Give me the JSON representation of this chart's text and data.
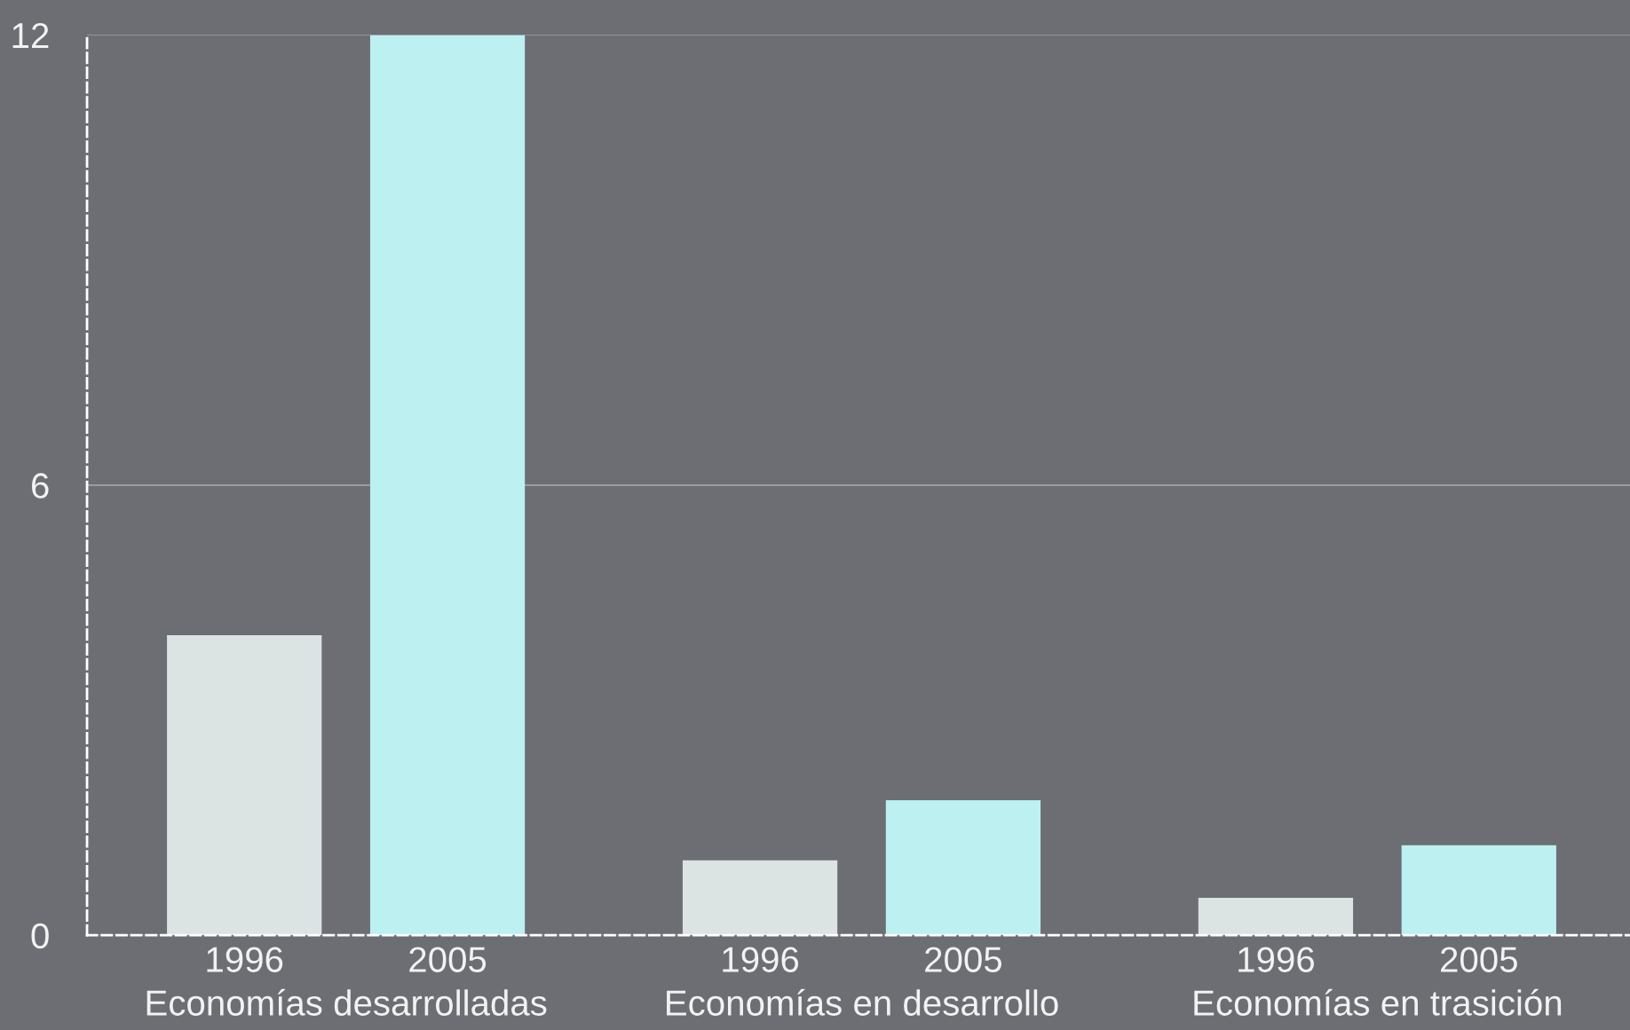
{
  "chart_data": {
    "type": "bar",
    "categories": [
      "Economías desarrolladas",
      "Economías en desarrollo",
      "Economías en trasición"
    ],
    "series": [
      {
        "name": "1996",
        "color": "#dce3e3",
        "values": [
          4.0,
          1.0,
          0.5
        ]
      },
      {
        "name": "2005",
        "color": "#bdf0f0",
        "values": [
          12,
          1.8,
          1.2
        ]
      }
    ],
    "ylim": [
      0,
      12
    ],
    "yticks": [
      0,
      6,
      12
    ],
    "grid": "y",
    "legend": false
  }
}
